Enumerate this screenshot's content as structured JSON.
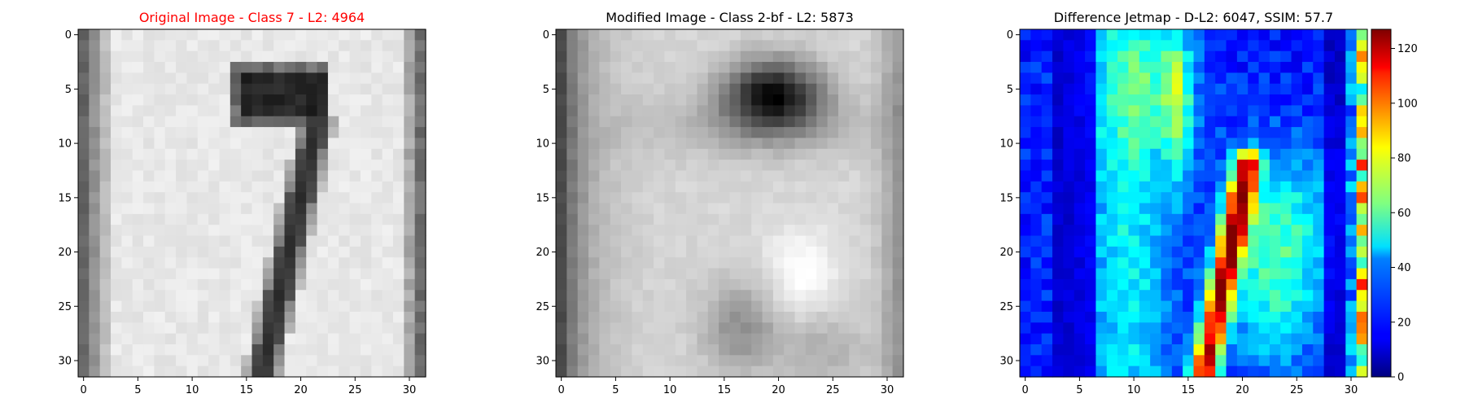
{
  "chart_data": [
    {
      "type": "heatmap",
      "title": "Original Image - Class 7 - L2: 4964",
      "title_color": "#ff0000",
      "colormap": "gray",
      "xticks": [
        "0",
        "5",
        "10",
        "15",
        "20",
        "25",
        "30"
      ],
      "yticks": [
        "0",
        "5",
        "10",
        "15",
        "20",
        "25",
        "30"
      ],
      "xlim": [
        -0.5,
        31.5
      ],
      "ylim": [
        31.5,
        -0.5
      ],
      "grid": false
    },
    {
      "type": "heatmap",
      "title": "Modified Image - Class 2-bf - L2: 5873",
      "title_color": "#000000",
      "colormap": "gray",
      "xticks": [
        "0",
        "5",
        "10",
        "15",
        "20",
        "25",
        "30"
      ],
      "yticks": [
        "0",
        "5",
        "10",
        "15",
        "20",
        "25",
        "30"
      ],
      "xlim": [
        -0.5,
        31.5
      ],
      "ylim": [
        31.5,
        -0.5
      ],
      "grid": false
    },
    {
      "type": "heatmap",
      "title": "Difference Jetmap - D-L2: 6047, SSIM: 57.7",
      "title_color": "#000000",
      "colormap": "jet",
      "xticks": [
        "0",
        "5",
        "10",
        "15",
        "20",
        "25",
        "30"
      ],
      "yticks": [
        "0",
        "5",
        "10",
        "15",
        "20",
        "25",
        "30"
      ],
      "xlim": [
        -0.5,
        31.5
      ],
      "ylim": [
        31.5,
        -0.5
      ],
      "grid": false,
      "colorbar": {
        "range": [
          0,
          127
        ],
        "ticks": [
          "0",
          "20",
          "40",
          "60",
          "80",
          "100",
          "120"
        ]
      }
    }
  ]
}
